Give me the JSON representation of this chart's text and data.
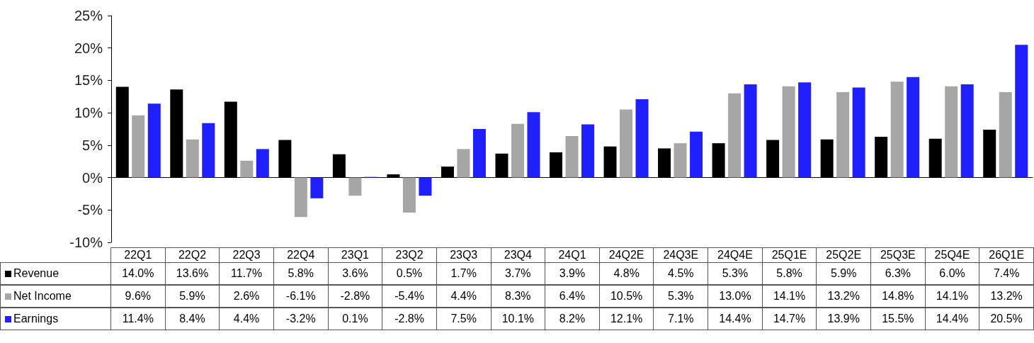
{
  "chart_data": {
    "type": "bar",
    "categories": [
      "22Q1",
      "22Q2",
      "22Q3",
      "22Q4",
      "23Q1",
      "23Q2",
      "23Q3",
      "23Q4",
      "24Q1",
      "24Q2E",
      "24Q3E",
      "24Q4E",
      "25Q1E",
      "25Q2E",
      "25Q3E",
      "25Q4E",
      "26Q1E"
    ],
    "series": [
      {
        "name": "Revenue",
        "color": "#000000",
        "values": [
          14.0,
          13.6,
          11.7,
          5.8,
          3.6,
          0.5,
          1.7,
          3.7,
          3.9,
          4.8,
          4.5,
          5.3,
          5.8,
          5.9,
          6.3,
          6.0,
          7.4
        ],
        "value_labels": [
          "14.0%",
          "13.6%",
          "11.7%",
          "5.8%",
          "3.6%",
          "0.5%",
          "1.7%",
          "3.7%",
          "3.9%",
          "4.8%",
          "4.5%",
          "5.3%",
          "5.8%",
          "5.9%",
          "6.3%",
          "6.0%",
          "7.4%"
        ]
      },
      {
        "name": "Net Income",
        "color": "#a6a6a6",
        "values": [
          9.6,
          5.9,
          2.6,
          -6.1,
          -2.8,
          -5.4,
          4.4,
          8.3,
          6.4,
          10.5,
          5.3,
          13.0,
          14.1,
          13.2,
          14.8,
          14.1,
          13.2
        ],
        "value_labels": [
          "9.6%",
          "5.9%",
          "2.6%",
          "-6.1%",
          "-2.8%",
          "-5.4%",
          "4.4%",
          "8.3%",
          "6.4%",
          "10.5%",
          "5.3%",
          "13.0%",
          "14.1%",
          "13.2%",
          "14.8%",
          "14.1%",
          "13.2%"
        ]
      },
      {
        "name": "Earnings",
        "color": "#1f1fff",
        "values": [
          11.4,
          8.4,
          4.4,
          -3.2,
          0.1,
          -2.8,
          7.5,
          10.1,
          8.2,
          12.1,
          7.1,
          14.4,
          14.7,
          13.9,
          15.5,
          14.4,
          20.5
        ],
        "value_labels": [
          "11.4%",
          "8.4%",
          "4.4%",
          "-3.2%",
          "0.1%",
          "-2.8%",
          "7.5%",
          "10.1%",
          "8.2%",
          "12.1%",
          "7.1%",
          "14.4%",
          "14.7%",
          "13.9%",
          "15.5%",
          "14.4%",
          "20.5%"
        ]
      }
    ],
    "legend": "bottom left",
    "ylim": [
      -10,
      25
    ],
    "yticks": [
      {
        "value": -10,
        "label": "-10%"
      },
      {
        "value": -5,
        "label": "-5%"
      },
      {
        "value": 0,
        "label": "0%"
      },
      {
        "value": 5,
        "label": "5%"
      },
      {
        "value": 10,
        "label": "10%"
      },
      {
        "value": 15,
        "label": "15%"
      },
      {
        "value": 20,
        "label": "20%"
      },
      {
        "value": 25,
        "label": "25%"
      }
    ]
  }
}
